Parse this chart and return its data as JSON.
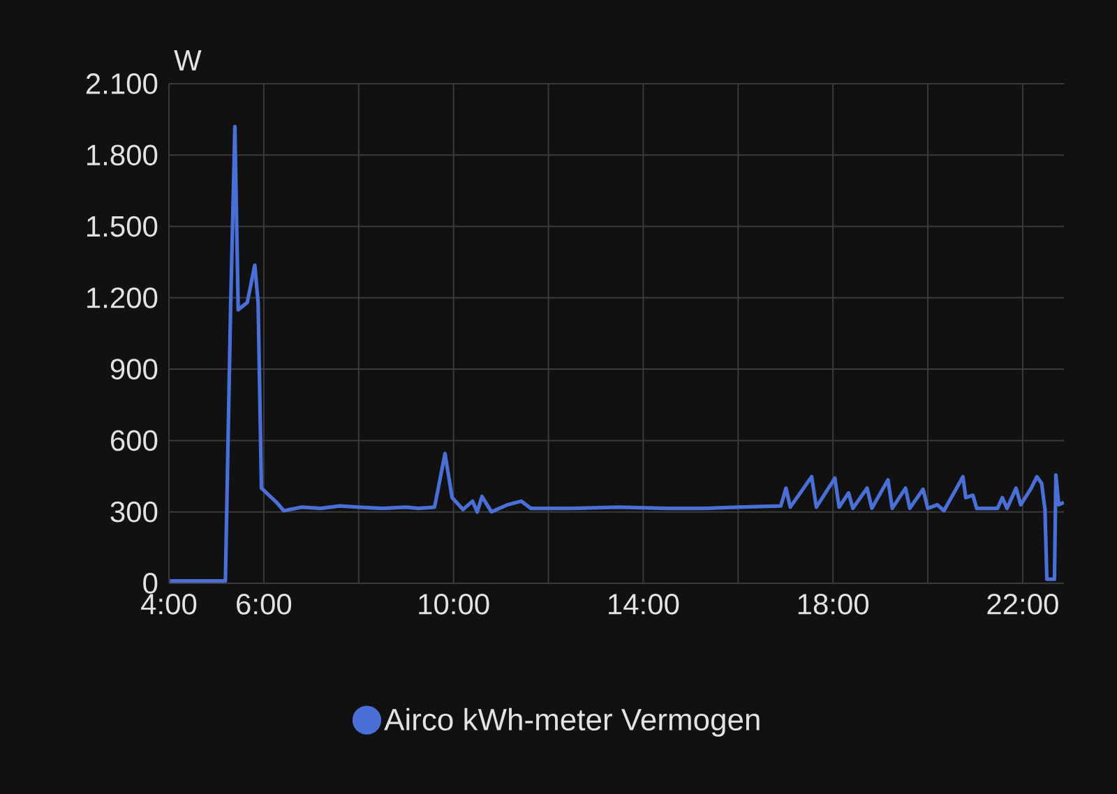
{
  "chart_data": {
    "type": "line",
    "ylabel": "W",
    "x": [
      4.02,
      5.19,
      5.3,
      5.39,
      5.46,
      5.65,
      5.81,
      5.88,
      5.95,
      6.27,
      6.42,
      6.8,
      7.2,
      7.6,
      8.0,
      8.5,
      9.0,
      9.26,
      9.6,
      9.82,
      9.97,
      10.2,
      10.4,
      10.5,
      10.6,
      10.8,
      11.14,
      11.43,
      11.63,
      12.5,
      13.5,
      14.5,
      15.3,
      16.0,
      16.9,
      17.01,
      17.1,
      17.55,
      17.65,
      18.04,
      18.13,
      18.33,
      18.42,
      18.72,
      18.82,
      19.16,
      19.25,
      19.53,
      19.62,
      19.9,
      20.0,
      20.2,
      20.34,
      20.74,
      20.8,
      20.95,
      21.03,
      21.47,
      21.57,
      21.67,
      21.86,
      21.96,
      22.18,
      22.3,
      22.4,
      22.47,
      22.51,
      22.67,
      22.7,
      22.76,
      22.87
    ],
    "series": [
      {
        "name": "Airco kWh-meter Vermogen",
        "color": "#4a6fd6",
        "values": [
          10,
          10,
          1160,
          1920,
          1150,
          1180,
          1337,
          1180,
          400,
          340,
          305,
          320,
          315,
          325,
          320,
          315,
          320,
          315,
          320,
          545,
          360,
          310,
          345,
          300,
          365,
          300,
          330,
          345,
          315,
          315,
          320,
          315,
          315,
          320,
          325,
          400,
          320,
          448,
          320,
          442,
          320,
          380,
          315,
          400,
          315,
          435,
          315,
          400,
          315,
          395,
          315,
          330,
          305,
          448,
          360,
          370,
          315,
          315,
          360,
          315,
          400,
          330,
          400,
          448,
          420,
          310,
          17,
          17,
          455,
          330,
          340
        ]
      }
    ],
    "xlim": [
      4,
      22.87
    ],
    "ylim": [
      0,
      2100
    ],
    "xticks": [
      {
        "value": 4,
        "label": "4:00"
      },
      {
        "value": 6,
        "label": "6:00"
      },
      {
        "value": 8,
        "label": null
      },
      {
        "value": 10,
        "label": "10:00"
      },
      {
        "value": 12,
        "label": null
      },
      {
        "value": 14,
        "label": "14:00"
      },
      {
        "value": 16,
        "label": null
      },
      {
        "value": 18,
        "label": "18:00"
      },
      {
        "value": 20,
        "label": null
      },
      {
        "value": 22,
        "label": "22:00"
      }
    ],
    "yticks": [
      0,
      300,
      600,
      900,
      {
        "value": 1200,
        "label": "1.200"
      },
      {
        "value": 1500,
        "label": "1.500"
      },
      {
        "value": 1800,
        "label": "1.800"
      },
      {
        "value": 2100,
        "label": "2.100"
      }
    ],
    "grid": true,
    "legend": "bottom",
    "marker": "none",
    "line_style": "solid"
  }
}
